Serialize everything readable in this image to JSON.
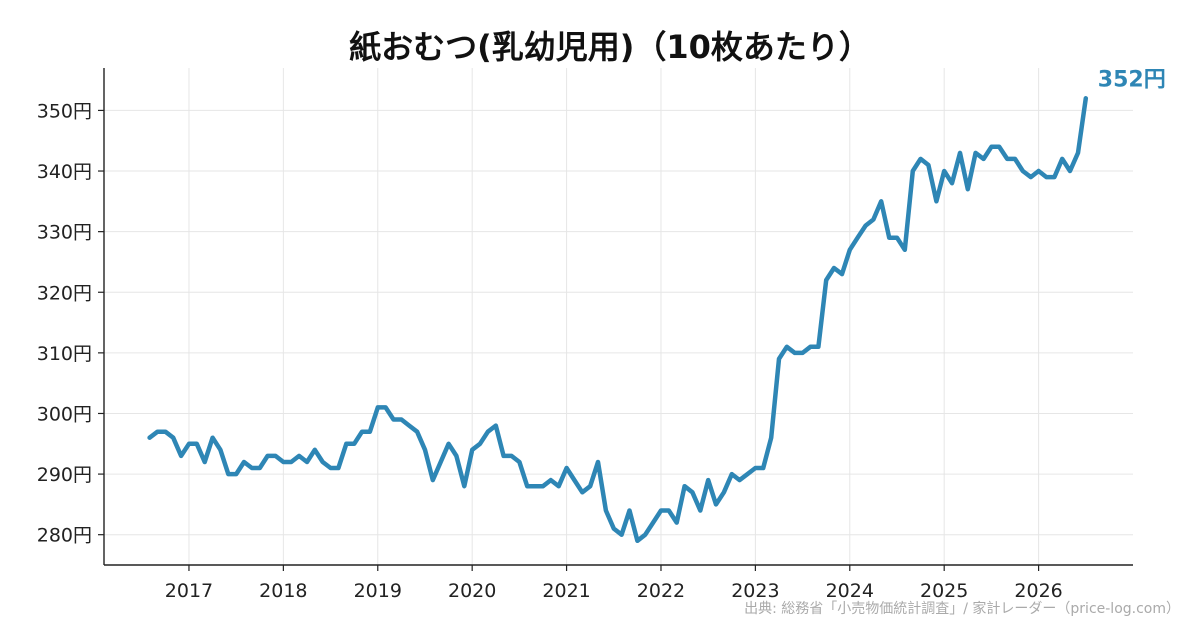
{
  "chart_data": {
    "type": "line",
    "title": "紙おむつ(乳幼児用)（10枚あたり）",
    "xlabel": "",
    "ylabel": "",
    "x_ticks": [
      "2017",
      "2018",
      "2019",
      "2020",
      "2021",
      "2022",
      "2023",
      "2024",
      "2025",
      "2026"
    ],
    "y_ticks": [
      "280円",
      "290円",
      "300円",
      "310円",
      "320円",
      "330円",
      "340円",
      "350円"
    ],
    "ylim": [
      275,
      357
    ],
    "xlim": [
      2016.1,
      2027.0
    ],
    "grid": true,
    "line_color": "#2e86b5",
    "end_label": "352円",
    "source": "出典: 総務省「小売物価統計調査」/ 家計レーダー（price-log.com）",
    "series": [
      {
        "x": [
          2016.583,
          2016.667,
          2016.75,
          2016.833,
          2016.917,
          2017.0,
          2017.083,
          2017.167,
          2017.25,
          2017.333,
          2017.417,
          2017.5,
          2017.583,
          2017.667,
          2017.75,
          2017.833,
          2017.917,
          2018.0,
          2018.083,
          2018.167,
          2018.25,
          2018.333,
          2018.417,
          2018.5,
          2018.583,
          2018.667,
          2018.75,
          2018.833,
          2018.917,
          2019.0,
          2019.083,
          2019.167,
          2019.25,
          2019.333,
          2019.417,
          2019.5,
          2019.583,
          2019.667,
          2019.75,
          2019.833,
          2019.917,
          2020.0,
          2020.083,
          2020.167,
          2020.25,
          2020.333,
          2020.417,
          2020.5,
          2020.583,
          2020.667,
          2020.75,
          2020.833,
          2020.917,
          2021.0,
          2021.083,
          2021.167,
          2021.25,
          2021.333,
          2021.417,
          2021.5,
          2021.583,
          2021.667,
          2021.75,
          2021.833,
          2021.917,
          2022.0,
          2022.083,
          2022.167,
          2022.25,
          2022.333,
          2022.417,
          2022.5,
          2022.583,
          2022.667,
          2022.75,
          2022.833,
          2022.917,
          2023.0,
          2023.083,
          2023.167,
          2023.25,
          2023.333,
          2023.417,
          2023.5,
          2023.583,
          2023.667,
          2023.75,
          2023.833,
          2023.917,
          2024.0,
          2024.083,
          2024.167,
          2024.25,
          2024.333,
          2024.417,
          2024.5,
          2024.583,
          2024.667,
          2024.75,
          2024.833,
          2024.917,
          2025.0,
          2025.083,
          2025.167,
          2025.25,
          2025.333,
          2025.417,
          2025.5,
          2025.583,
          2025.667,
          2025.75,
          2025.833,
          2025.917,
          2026.0,
          2026.083,
          2026.167,
          2026.25,
          2026.333,
          2026.417,
          2026.5
        ],
        "values": [
          296,
          297,
          297,
          296,
          293,
          295,
          295,
          292,
          296,
          294,
          290,
          290,
          292,
          291,
          291,
          293,
          293,
          292,
          292,
          293,
          292,
          294,
          292,
          291,
          291,
          295,
          295,
          297,
          297,
          301,
          301,
          299,
          299,
          298,
          297,
          294,
          289,
          292,
          295,
          293,
          288,
          294,
          295,
          297,
          298,
          293,
          293,
          292,
          288,
          288,
          288,
          289,
          288,
          291,
          289,
          287,
          288,
          292,
          284,
          281,
          280,
          284,
          279,
          280,
          282,
          284,
          284,
          282,
          288,
          287,
          284,
          289,
          285,
          287,
          290,
          289,
          290,
          291,
          291,
          296,
          309,
          311,
          310,
          310,
          311,
          311,
          322,
          324,
          323,
          327,
          329,
          331,
          332,
          335,
          329,
          329,
          327,
          340,
          342,
          341,
          335,
          340,
          338,
          343,
          337,
          343,
          342,
          344,
          344,
          342,
          342,
          340,
          339,
          340,
          339,
          339,
          342,
          340,
          343,
          352
        ]
      }
    ]
  }
}
